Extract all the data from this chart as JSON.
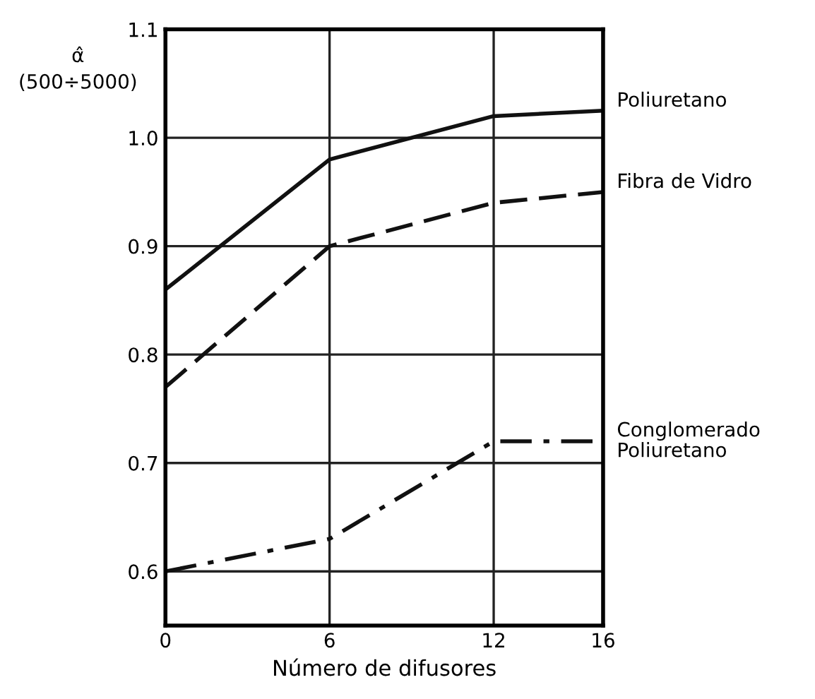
{
  "chart_data": {
    "type": "line",
    "xlabel": "Número de difusores",
    "ylabel": "α̂\n(500÷5000)",
    "x": [
      0,
      6,
      12,
      16
    ],
    "series": [
      {
        "name": "Poliuretano",
        "color": "#111111",
        "line_style": "solid",
        "values": [
          0.86,
          0.98,
          1.02,
          1.025
        ]
      },
      {
        "name": "Fibra de Vidro",
        "color": "#111111",
        "line_style": "dashed",
        "values": [
          0.77,
          0.9,
          0.94,
          0.95
        ]
      },
      {
        "name": "Conglomerado\nPoliuretano",
        "color": "#111111",
        "line_style": "dashdot",
        "values": [
          0.6,
          0.63,
          0.72,
          0.72
        ]
      }
    ],
    "xlim": [
      0,
      16
    ],
    "xticks": [
      0,
      6,
      12,
      16
    ],
    "ylim": [
      0.55,
      1.1
    ],
    "yticks": [
      {
        "value": 0.6,
        "label": "0.6"
      },
      0.7,
      0.8,
      0.9,
      {
        "value": 1.0,
        "label": "1.0"
      },
      1.1
    ],
    "grid": true,
    "legend": false,
    "marker": "none"
  }
}
